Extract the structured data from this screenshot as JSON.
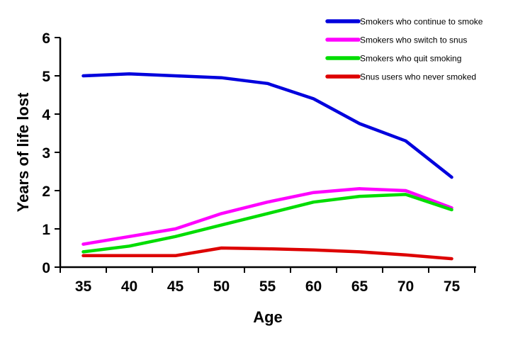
{
  "figure": {
    "background": "#ffffff",
    "axis_color": "#000000",
    "text_color": "#000000"
  },
  "chart_data": {
    "type": "line",
    "title": "",
    "xlabel": "Age",
    "ylabel": "Years of life lost",
    "x": [
      35,
      40,
      45,
      50,
      55,
      60,
      65,
      70,
      75
    ],
    "ylim": [
      0,
      6
    ],
    "yticks": [
      0,
      1,
      2,
      3,
      4,
      5,
      6
    ],
    "grid": false,
    "legend_position": "top-right",
    "series": [
      {
        "name": "Smokers who continue to smoke",
        "color": "#0000DD",
        "values": [
          5.0,
          5.05,
          5.0,
          4.95,
          4.8,
          4.4,
          3.75,
          3.3,
          2.35
        ]
      },
      {
        "name": "Smokers who switch to snus",
        "color": "#FF00FF",
        "values": [
          0.6,
          0.8,
          1.0,
          1.4,
          1.7,
          1.95,
          2.05,
          2.0,
          1.55
        ]
      },
      {
        "name": "Smokers who quit smoking",
        "color": "#00DD00",
        "values": [
          0.4,
          0.55,
          0.8,
          1.1,
          1.4,
          1.7,
          1.85,
          1.9,
          1.5
        ]
      },
      {
        "name": "Snus users who never smoked",
        "color": "#DD0000",
        "values": [
          0.3,
          0.3,
          0.3,
          0.5,
          0.48,
          0.45,
          0.4,
          0.32,
          0.22
        ]
      }
    ]
  }
}
